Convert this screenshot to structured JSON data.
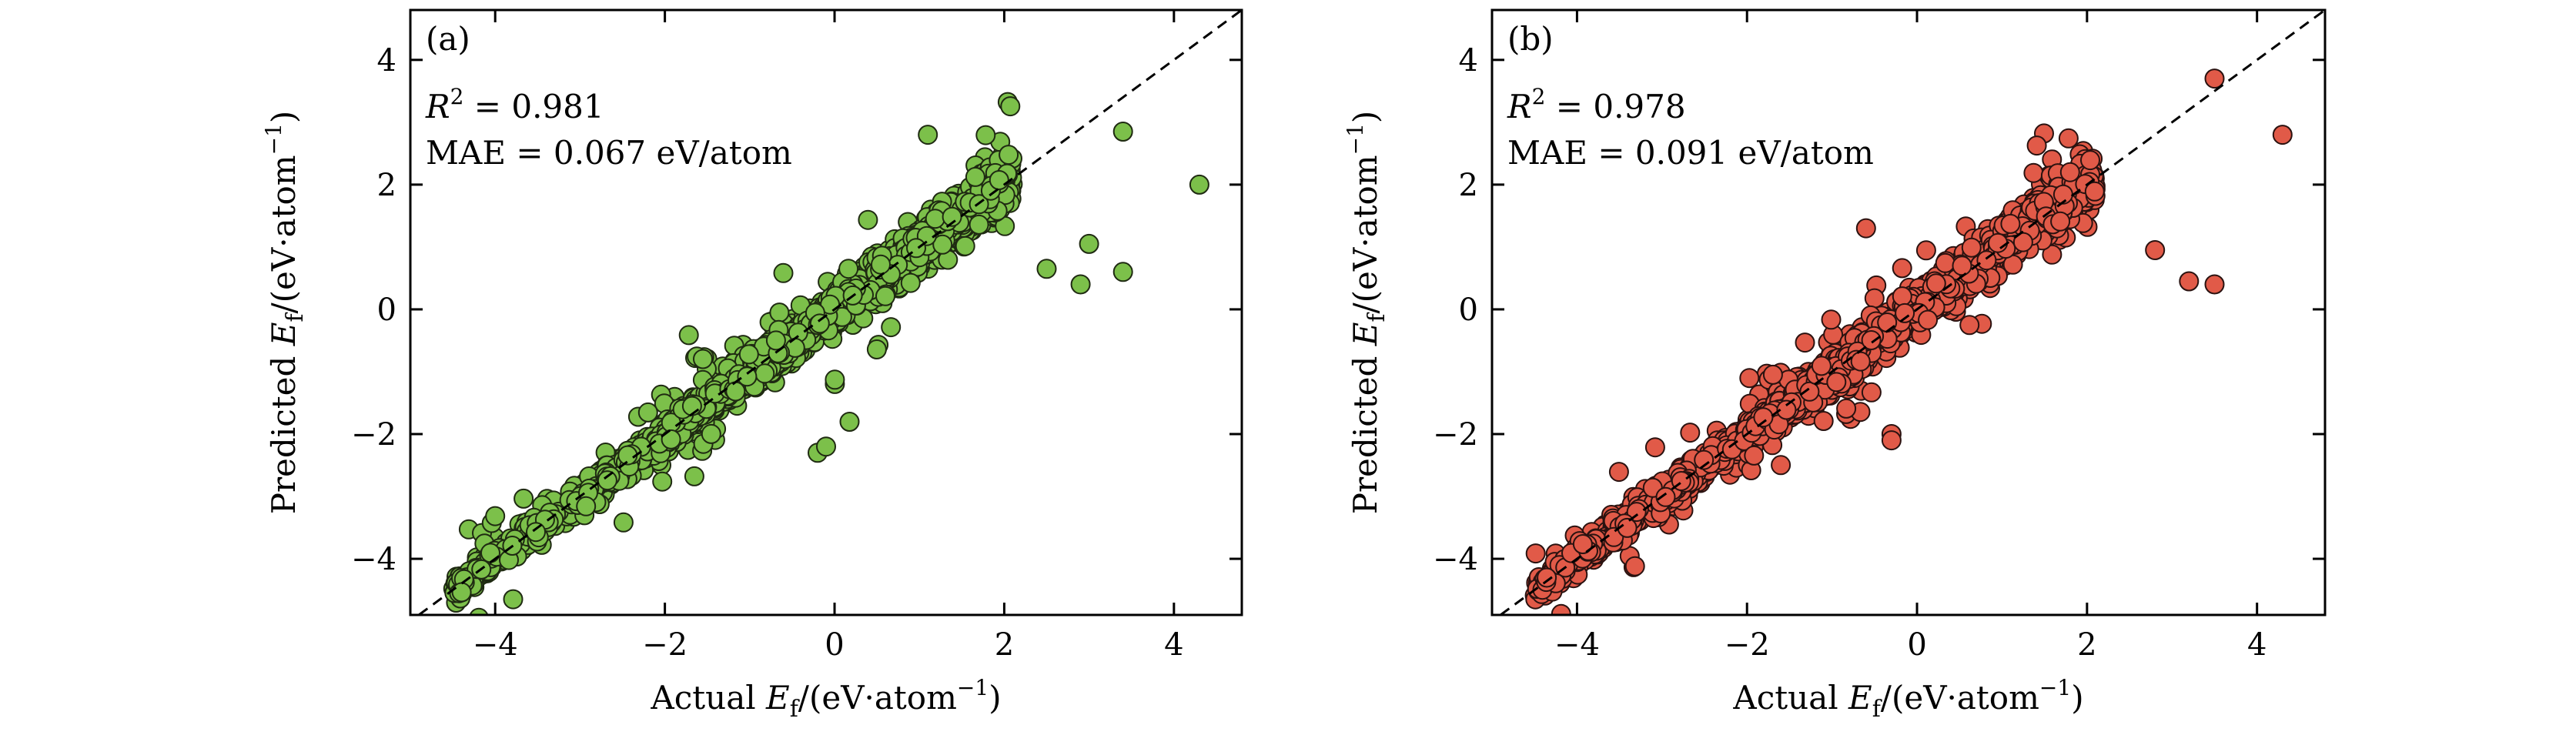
{
  "chart_data": [
    {
      "type": "scatter",
      "panel_label": "(a)",
      "annotations": {
        "r2_label": "R",
        "r2_value": "0.981",
        "mae_label": "MAE",
        "mae_value": "0.067 eV/atom"
      },
      "xlabel": {
        "prefix": "Actual",
        "unit": "(eV·atom"
      },
      "ylabel": {
        "prefix": "Predicted",
        "unit": "(eV·atom"
      },
      "xlim": [
        -5,
        4.8
      ],
      "ylim": [
        -4.9,
        4.8
      ],
      "xticks": [
        -4,
        -2,
        0,
        2,
        4
      ],
      "yticks": [
        -4,
        -2,
        0,
        2,
        4
      ],
      "xtick_labels": [
        "−4",
        "−2",
        "0",
        "2",
        "4"
      ],
      "ytick_labels": [
        "−4",
        "−2",
        "0",
        "2",
        "4"
      ],
      "reference_line": "y = x (dashed)",
      "marker_color": "#7cc04a",
      "marker_edge": "#1f2a12",
      "n_points": 2600,
      "seed": 7,
      "outliers": [
        [
          4.3,
          2.0
        ],
        [
          3.4,
          2.85
        ],
        [
          1.1,
          2.8
        ],
        [
          3.4,
          0.6
        ],
        [
          2.9,
          0.4
        ],
        [
          -0.2,
          -2.3
        ],
        [
          -0.1,
          -2.2
        ],
        [
          3.0,
          1.05
        ],
        [
          2.5,
          0.65
        ]
      ]
    },
    {
      "type": "scatter",
      "panel_label": "(b)",
      "annotations": {
        "r2_label": "R",
        "r2_value": "0.978",
        "mae_label": "MAE",
        "mae_value": "0.091 eV/atom"
      },
      "xlabel": {
        "prefix": "Actual",
        "unit": "(eV·atom"
      },
      "ylabel": {
        "prefix": "Predicted",
        "unit": "(eV·atom"
      },
      "xlim": [
        -5,
        4.8
      ],
      "ylim": [
        -4.9,
        4.8
      ],
      "xticks": [
        -4,
        -2,
        0,
        2,
        4
      ],
      "yticks": [
        -4,
        -2,
        0,
        2,
        4
      ],
      "xtick_labels": [
        "−4",
        "−2",
        "0",
        "2",
        "4"
      ],
      "ytick_labels": [
        "−4",
        "−2",
        "0",
        "2",
        "4"
      ],
      "reference_line": "y = x (dashed)",
      "marker_color": "#e15a48",
      "marker_edge": "#2a1210",
      "n_points": 2600,
      "seed": 13,
      "outliers": [
        [
          4.3,
          2.8
        ],
        [
          3.5,
          3.7
        ],
        [
          3.5,
          0.4
        ],
        [
          3.2,
          0.45
        ],
        [
          -0.3,
          -2.0
        ],
        [
          -0.3,
          -2.1
        ],
        [
          2.8,
          0.95
        ],
        [
          1.8,
          2.2
        ],
        [
          -0.6,
          1.3
        ]
      ]
    }
  ]
}
